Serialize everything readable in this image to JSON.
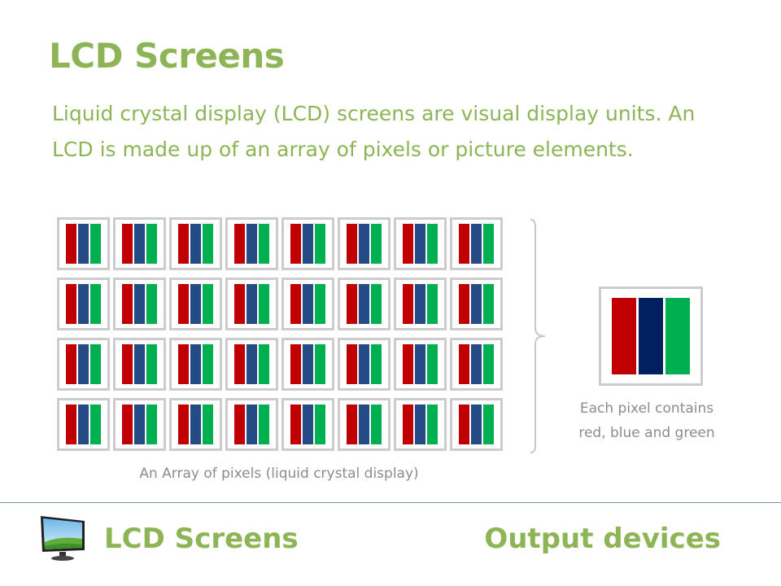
{
  "slide": {
    "title": "LCD Screens",
    "body": "Liquid crystal display (LCD) screens are visual display units. An LCD is made up of an array of pixels or picture elements.",
    "array_caption": "An Array of pixels (liquid crystal display)",
    "pixel_caption_line1": "Each pixel contains",
    "pixel_caption_line2": "red, blue and green"
  },
  "pixel_array": {
    "rows": 4,
    "columns": 8
  },
  "colors": {
    "accent": "#8db556",
    "subpixel_red": "#c00000",
    "subpixel_blue": "#254b86",
    "subpixel_blue_large": "#002060",
    "subpixel_green": "#00b050",
    "caption_gray": "#8c8c8c"
  },
  "footer": {
    "icon": "monitor-icon",
    "title": "LCD Screens",
    "section": "Output devices"
  }
}
